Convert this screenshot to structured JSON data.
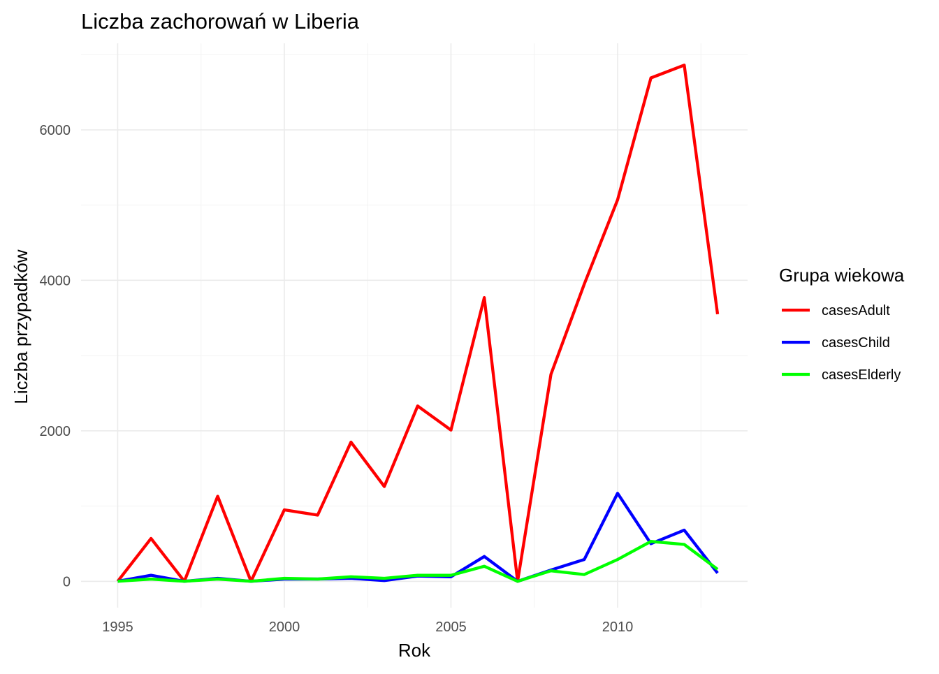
{
  "chart_data": {
    "type": "line",
    "title": "Liczba zachorowań w Liberia",
    "xlabel": "Rok",
    "ylabel": "Liczba przypadków",
    "x": [
      1995,
      1996,
      1997,
      1998,
      1999,
      2000,
      2001,
      2002,
      2003,
      2004,
      2005,
      2006,
      2007,
      2008,
      2009,
      2010,
      2011,
      2012,
      2013
    ],
    "xlim": [
      1993.9,
      2013.9
    ],
    "ylim": [
      -350,
      7150
    ],
    "x_ticks": [
      "1995",
      "2000",
      "2005",
      "2010"
    ],
    "y_ticks": [
      "0",
      "2000",
      "4000",
      "6000"
    ],
    "grid": true,
    "legend": {
      "title": "Grupa wiekowa",
      "position": "right"
    },
    "series": [
      {
        "name": "casesAdult",
        "color": "#ff0000",
        "values": [
          0,
          570,
          0,
          1130,
          0,
          950,
          880,
          1850,
          1260,
          2330,
          2010,
          3770,
          0,
          2750,
          3950,
          5070,
          6690,
          6860,
          3550
        ]
      },
      {
        "name": "casesChild",
        "color": "#0000ff",
        "values": [
          0,
          80,
          0,
          40,
          0,
          30,
          30,
          40,
          10,
          70,
          60,
          330,
          0,
          150,
          290,
          1170,
          500,
          680,
          110
        ]
      },
      {
        "name": "casesElderly",
        "color": "#00ff00",
        "values": [
          0,
          30,
          0,
          30,
          0,
          40,
          30,
          60,
          40,
          80,
          80,
          200,
          0,
          140,
          90,
          290,
          530,
          490,
          160
        ]
      }
    ]
  }
}
